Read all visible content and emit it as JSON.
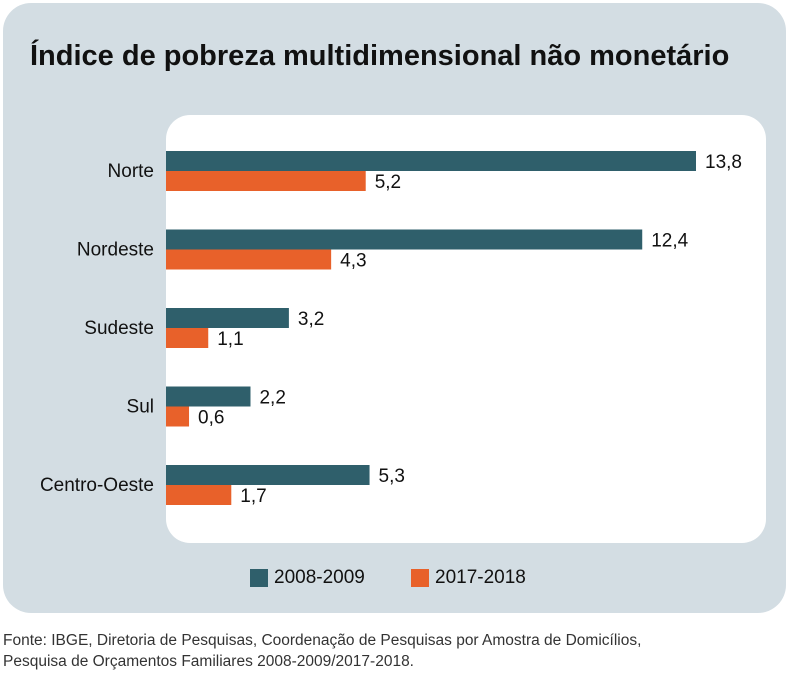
{
  "chart_data": {
    "type": "bar",
    "orientation": "horizontal",
    "title": "Índice de pobreza multidimensional não monetário",
    "categories": [
      "Norte",
      "Nordeste",
      "Sudeste",
      "Sul",
      "Centro-Oeste"
    ],
    "series": [
      {
        "name": "2008-2009",
        "values": [
          13.8,
          12.4,
          3.2,
          2.2,
          5.3
        ],
        "labels": [
          "13,8",
          "12,4",
          "3,2",
          "2,2",
          "5,3"
        ],
        "color": "#2f5f6b"
      },
      {
        "name": "2017-2018",
        "values": [
          5.2,
          4.3,
          1.1,
          0.6,
          1.7
        ],
        "labels": [
          "5,2",
          "4,3",
          "1,1",
          "0,6",
          "1,7"
        ],
        "color": "#e8612a"
      }
    ],
    "xlim": [
      0,
      15
    ],
    "grid": false,
    "legend_position": "bottom-center"
  },
  "source": {
    "line1": "Fonte: IBGE, Diretoria de Pesquisas, Coordenação de Pesquisas por Amostra de Domicílios,",
    "line2": "Pesquisa de Orçamentos Familiares 2008-2009/2017-2018."
  }
}
